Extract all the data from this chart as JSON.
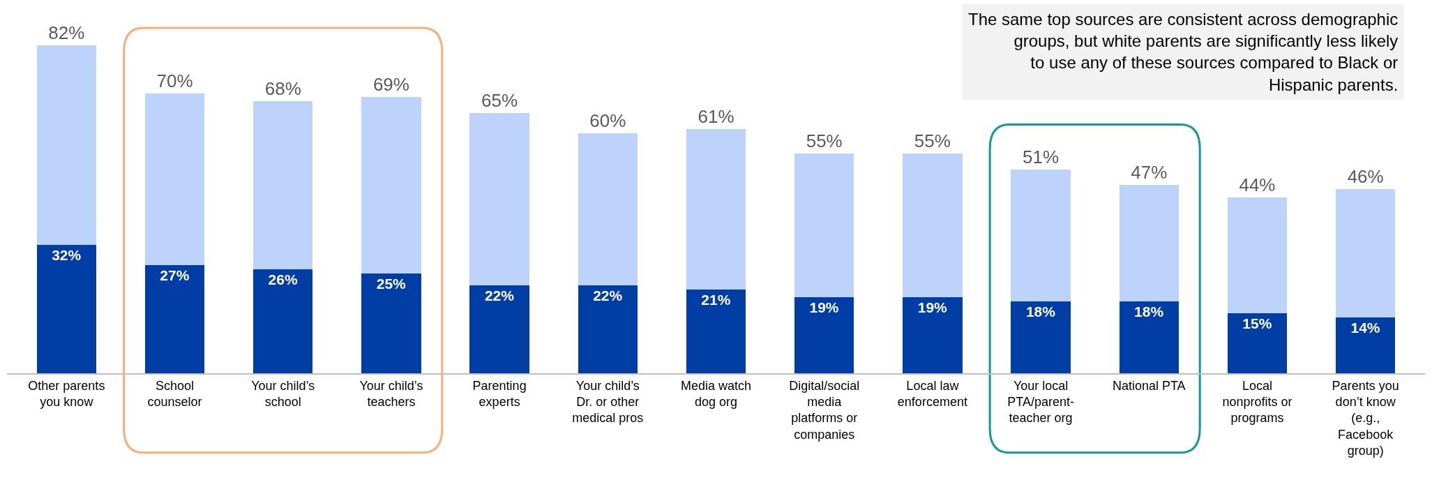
{
  "chart_data": {
    "type": "bar",
    "stacked": true,
    "categories": [
      "Other parents you know",
      "School counselor",
      "Your child’s school",
      "Your child’s teachers",
      "Parenting experts",
      "Your child’s Dr. or other medical pros",
      "Media watch dog org",
      "Digital/social media platforms or companies",
      "Local law enforcement",
      "Your local PTA/parent-teacher org",
      "National PTA",
      "Local nonprofits or programs",
      "Parents you don’t know (e.g., Facebook group)"
    ],
    "series": [
      {
        "color": "#003da5",
        "values": [
          32,
          27,
          26,
          25,
          22,
          22,
          21,
          19,
          19,
          18,
          18,
          15,
          14
        ],
        "value_labels": [
          "32%",
          "27%",
          "26%",
          "25%",
          "22%",
          "22%",
          "21%",
          "19%",
          "19%",
          "18%",
          "18%",
          "15%",
          "14%"
        ]
      },
      {
        "color": "#bdd3fc",
        "values": [
          50,
          43,
          42,
          44,
          43,
          38,
          40,
          36,
          36,
          33,
          29,
          29,
          32
        ]
      }
    ],
    "totals": [
      "82%",
      "70%",
      "68%",
      "69%",
      "65%",
      "60%",
      "61%",
      "55%",
      "55%",
      "51%",
      "47%",
      "44%",
      "46%"
    ],
    "annotations": [
      "The same top sources are consistent across demographic groups, but white parents are significantly less likely to use any of these sources compared to Black or Hispanic parents."
    ],
    "legend": false,
    "grid": false
  }
}
